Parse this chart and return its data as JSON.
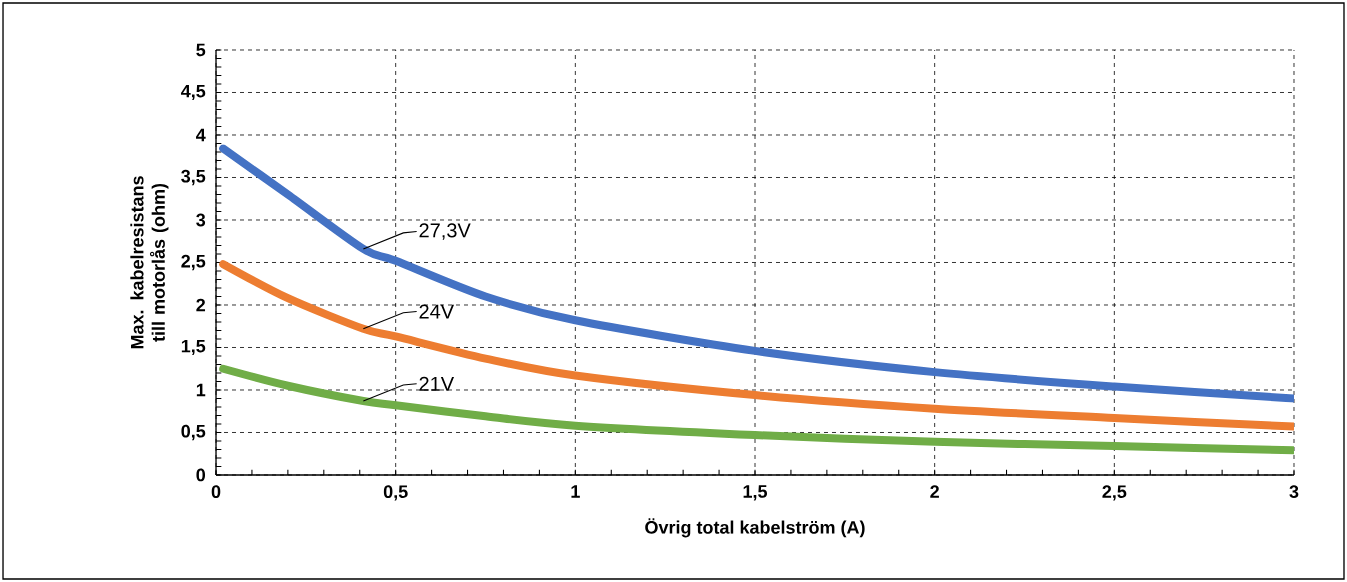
{
  "chart_data": {
    "type": "line",
    "xlabel": "Övrig total kabelström (A)",
    "ylabel": "Max. kabelresistans till motorlås (ohm)",
    "x": [
      0.02,
      0.2,
      0.41,
      0.5,
      0.75,
      1,
      1.5,
      2,
      2.5,
      3
    ],
    "series": [
      {
        "name": "27,3V",
        "color": "#4472c4",
        "values": [
          3.84,
          3.3,
          2.66,
          2.52,
          2.1,
          1.82,
          1.46,
          1.21,
          1.04,
          0.9
        ]
      },
      {
        "name": "24V",
        "color": "#ed7d31",
        "values": [
          2.48,
          2.08,
          1.72,
          1.63,
          1.37,
          1.17,
          0.94,
          0.78,
          0.67,
          0.57
        ]
      },
      {
        "name": "21V",
        "color": "#70ad47",
        "values": [
          1.25,
          1.05,
          0.87,
          0.82,
          0.69,
          0.58,
          0.47,
          0.39,
          0.34,
          0.29
        ]
      }
    ],
    "xlim": [
      0,
      3
    ],
    "ylim": [
      0,
      5
    ],
    "xticks": [
      0,
      {
        "value": 0.5,
        "label": "0,5"
      },
      1,
      {
        "value": 1.5,
        "label": "1,5"
      },
      2,
      {
        "value": 2.5,
        "label": "2,5"
      },
      3
    ],
    "yticks": [
      0,
      {
        "value": 0.5,
        "label": "0,5"
      },
      1,
      {
        "value": 1.5,
        "label": "1,5"
      },
      2,
      {
        "value": 2.5,
        "label": "2,5"
      },
      3,
      {
        "value": 3.5,
        "label": "3,5"
      },
      4,
      {
        "value": 4.5,
        "label": "4,5"
      },
      5
    ],
    "grid": true,
    "marker": "none",
    "line_style": "solid"
  }
}
